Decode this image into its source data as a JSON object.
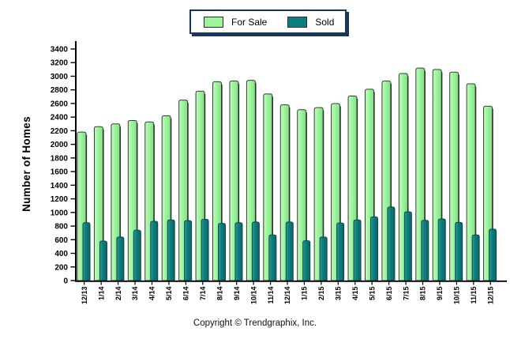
{
  "legend": {
    "items": [
      {
        "label": "For Sale",
        "color": "#9CF49C",
        "border": "#2b2b2b"
      },
      {
        "label": "Sold",
        "color": "#0E7E7E",
        "border": "#2b2b2b"
      }
    ]
  },
  "footer": {
    "copyright": "Copyright © Trendgraphix, Inc."
  },
  "chart_data": {
    "type": "bar",
    "title": "",
    "xlabel": "",
    "ylabel": "Number of Homes",
    "ylim": [
      0,
      3400
    ],
    "ytick_step": 200,
    "grid": false,
    "legend_position": "top-center",
    "x_label_rotation": -90,
    "categories": [
      "12/13",
      "1/14",
      "2/14",
      "3/14",
      "4/14",
      "5/14",
      "6/14",
      "7/14",
      "8/14",
      "9/14",
      "10/14",
      "11/14",
      "12/14",
      "1/15",
      "2/15",
      "3/15",
      "4/15",
      "5/15",
      "6/15",
      "7/15",
      "8/15",
      "9/15",
      "10/15",
      "11/15",
      "12/15"
    ],
    "series": [
      {
        "name": "For Sale",
        "color": "#9CF49C",
        "stroke": "#3a3a3a",
        "values": [
          2180,
          2260,
          2300,
          2350,
          2330,
          2420,
          2650,
          2780,
          2920,
          2930,
          2940,
          2740,
          2580,
          2510,
          2540,
          2600,
          2710,
          2810,
          2930,
          3040,
          3120,
          3100,
          3060,
          2890,
          2560
        ]
      },
      {
        "name": "Sold",
        "color": "#0E7E7E",
        "stroke": "#0a4a4a",
        "values": [
          850,
          580,
          640,
          740,
          870,
          890,
          880,
          900,
          840,
          850,
          860,
          670,
          860,
          585,
          640,
          845,
          890,
          935,
          1080,
          1010,
          885,
          905,
          855,
          670,
          755
        ]
      }
    ]
  }
}
